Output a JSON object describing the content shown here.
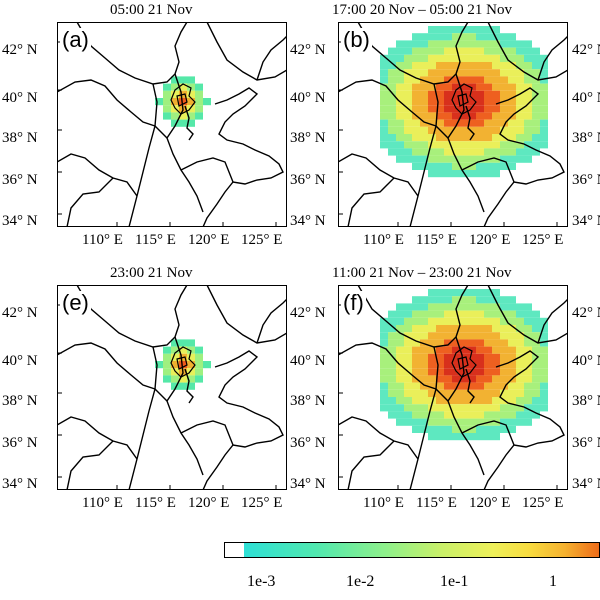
{
  "panels": [
    {
      "id": "a",
      "label": "(a)",
      "title": "05:00 21 Nov"
    },
    {
      "id": "b",
      "label": "(b)",
      "title": "17:00 20 Nov – 05:00 21 Nov"
    },
    {
      "id": "e",
      "label": "(e)",
      "title": "23:00 21 Nov"
    },
    {
      "id": "f",
      "label": "(f)",
      "title": "11:00 21 Nov – 23:00 21 Nov"
    }
  ],
  "lat_labels": [
    "42° N",
    "40° N",
    "38° N",
    "36° N",
    "34° N"
  ],
  "lon_labels": [
    "110° E",
    "115° E",
    "120° E",
    "125° E"
  ],
  "colorbar": {
    "ticks": [
      "1e-3",
      "1e-2",
      "1e-1",
      "1"
    ],
    "colors": [
      "#ffffff",
      "#2fe0d6",
      "#50e8b0",
      "#8ff08a",
      "#c8f06a",
      "#eef05a",
      "#f8dc40",
      "#f5b230",
      "#f08a20",
      "#ee6a18",
      "#e84820"
    ]
  },
  "footprints": {
    "small": {
      "colors": [
        "#55e8a8",
        "#9ff080",
        "#e8f05a",
        "#f0b030",
        "#ee5a1c"
      ]
    },
    "large": {
      "colors": [
        "#5ee8c0",
        "#a8f07c",
        "#eaef5a",
        "#f2b232",
        "#ee6020",
        "#d8301c"
      ]
    }
  }
}
